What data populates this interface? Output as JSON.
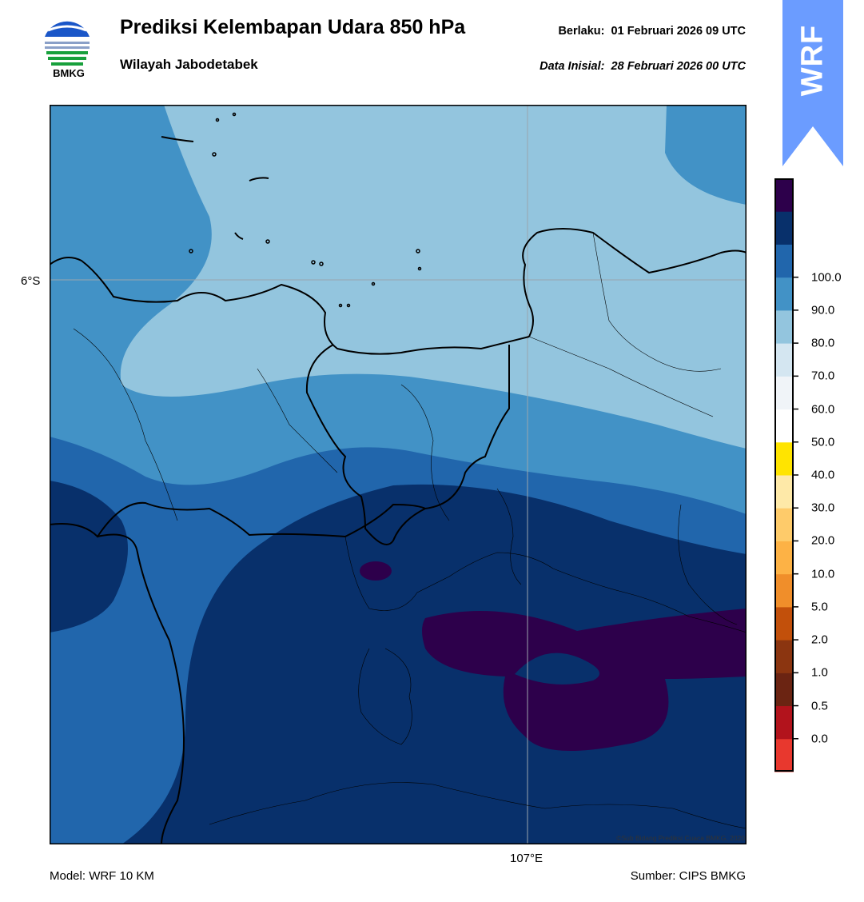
{
  "header": {
    "title": "Prediksi Kelembapan Udara 850 hPa",
    "subtitle": "Wilayah Jabodetabek",
    "valid_label": "Berlaku:",
    "valid_time": "01 Februari 2026 09 UTC",
    "init_label": "Data Inisial:",
    "init_time": "28 Februari 2026 00 UTC"
  },
  "logo": {
    "text": "BMKG",
    "icon": "bmkg-logo-icon"
  },
  "badge": {
    "text": "WRF",
    "color": "#6b9cff"
  },
  "map": {
    "lat_label": "6°S",
    "lon_label": "107°E",
    "credit": "©Sub Bidang Prediksi Cuaca BMKG, 2020"
  },
  "footer": {
    "model": "Model: WRF 10 KM",
    "source": "Sumber: CIPS BMKG"
  },
  "colorbar": {
    "colors": [
      "#e8382e",
      "#b2131c",
      "#6b2412",
      "#8b3510",
      "#c2500b",
      "#f08e2a",
      "#fdb245",
      "#fecb6a",
      "#fee9a8",
      "#ffe400",
      "#ffffff",
      "#f0f4f8",
      "#d4e6f1",
      "#93c5de",
      "#4292c6",
      "#2166ac",
      "#08306b",
      "#2d004b"
    ],
    "labels": [
      "0.0",
      "0.5",
      "1.0",
      "2.0",
      "5.0",
      "10.0",
      "20.0",
      "30.0",
      "40.0",
      "50.0",
      "60.0",
      "70.0",
      "80.0",
      "90.0",
      "100.0"
    ]
  }
}
